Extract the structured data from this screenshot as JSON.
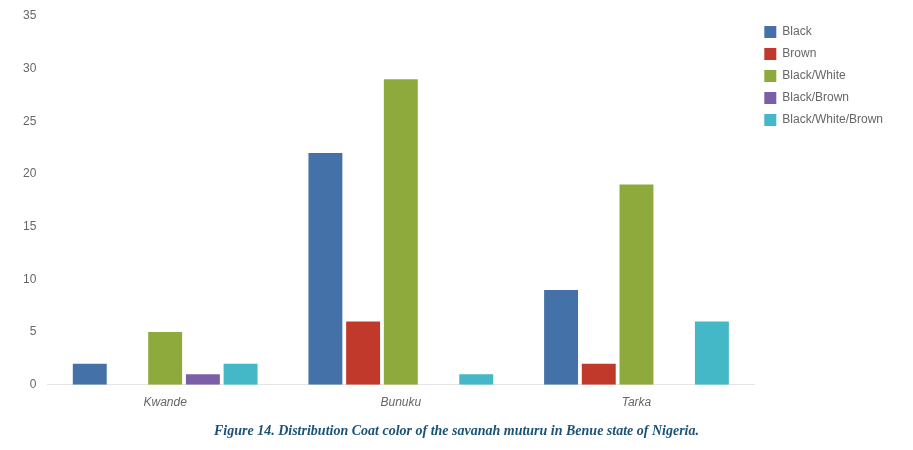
{
  "chart_data": {
    "type": "bar",
    "title": "Figure 14. Distribution Coat color of the savanah muturu in Benue state of Nigeria.",
    "categories": [
      "Kwande",
      "Bunuku",
      "Tarka"
    ],
    "series": [
      {
        "name": "Black",
        "color": "#4472a8",
        "values": [
          2,
          22,
          9
        ]
      },
      {
        "name": "Brown",
        "color": "#c0392b",
        "values": [
          0,
          6,
          2
        ]
      },
      {
        "name": "Black/White",
        "color": "#8faa3c",
        "values": [
          5,
          29,
          19
        ]
      },
      {
        "name": "Black/Brown",
        "color": "#7b5ea7",
        "values": [
          1,
          0,
          0
        ]
      },
      {
        "name": "Black/White/Brown",
        "color": "#45b8c8",
        "values": [
          2,
          1,
          6
        ]
      }
    ],
    "ylim": [
      0,
      35
    ],
    "yticks": [
      0,
      5,
      10,
      15,
      20,
      25,
      30,
      35
    ],
    "grid": false,
    "legend": "right"
  }
}
